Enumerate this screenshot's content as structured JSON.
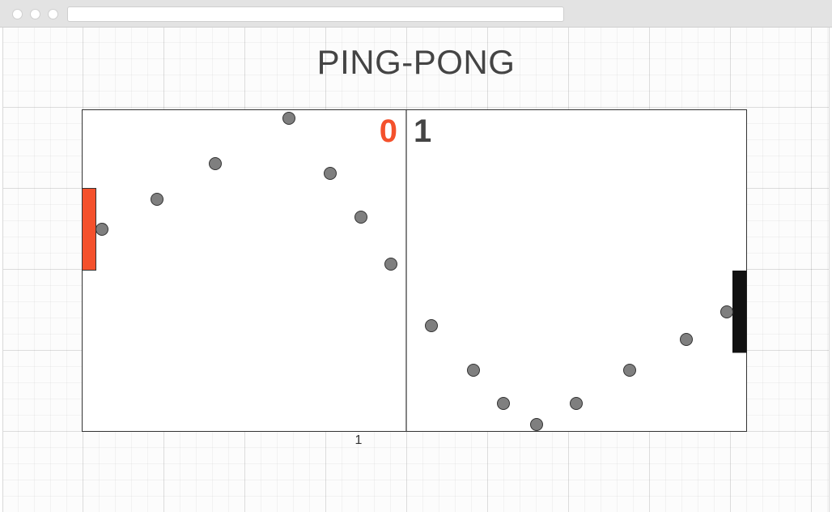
{
  "page": {
    "title": "PING-PONG",
    "counter": "1"
  },
  "score": {
    "left": "0",
    "right": "1"
  },
  "colors": {
    "left_paddle": "#f4512c",
    "right_paddle": "#111111",
    "ball": "#7f7f7f",
    "left_score": "#f4512c",
    "right_score": "#444444"
  },
  "icons": {
    "window_controls": [
      "close-dot-icon",
      "minimize-dot-icon",
      "maximize-dot-icon"
    ]
  }
}
